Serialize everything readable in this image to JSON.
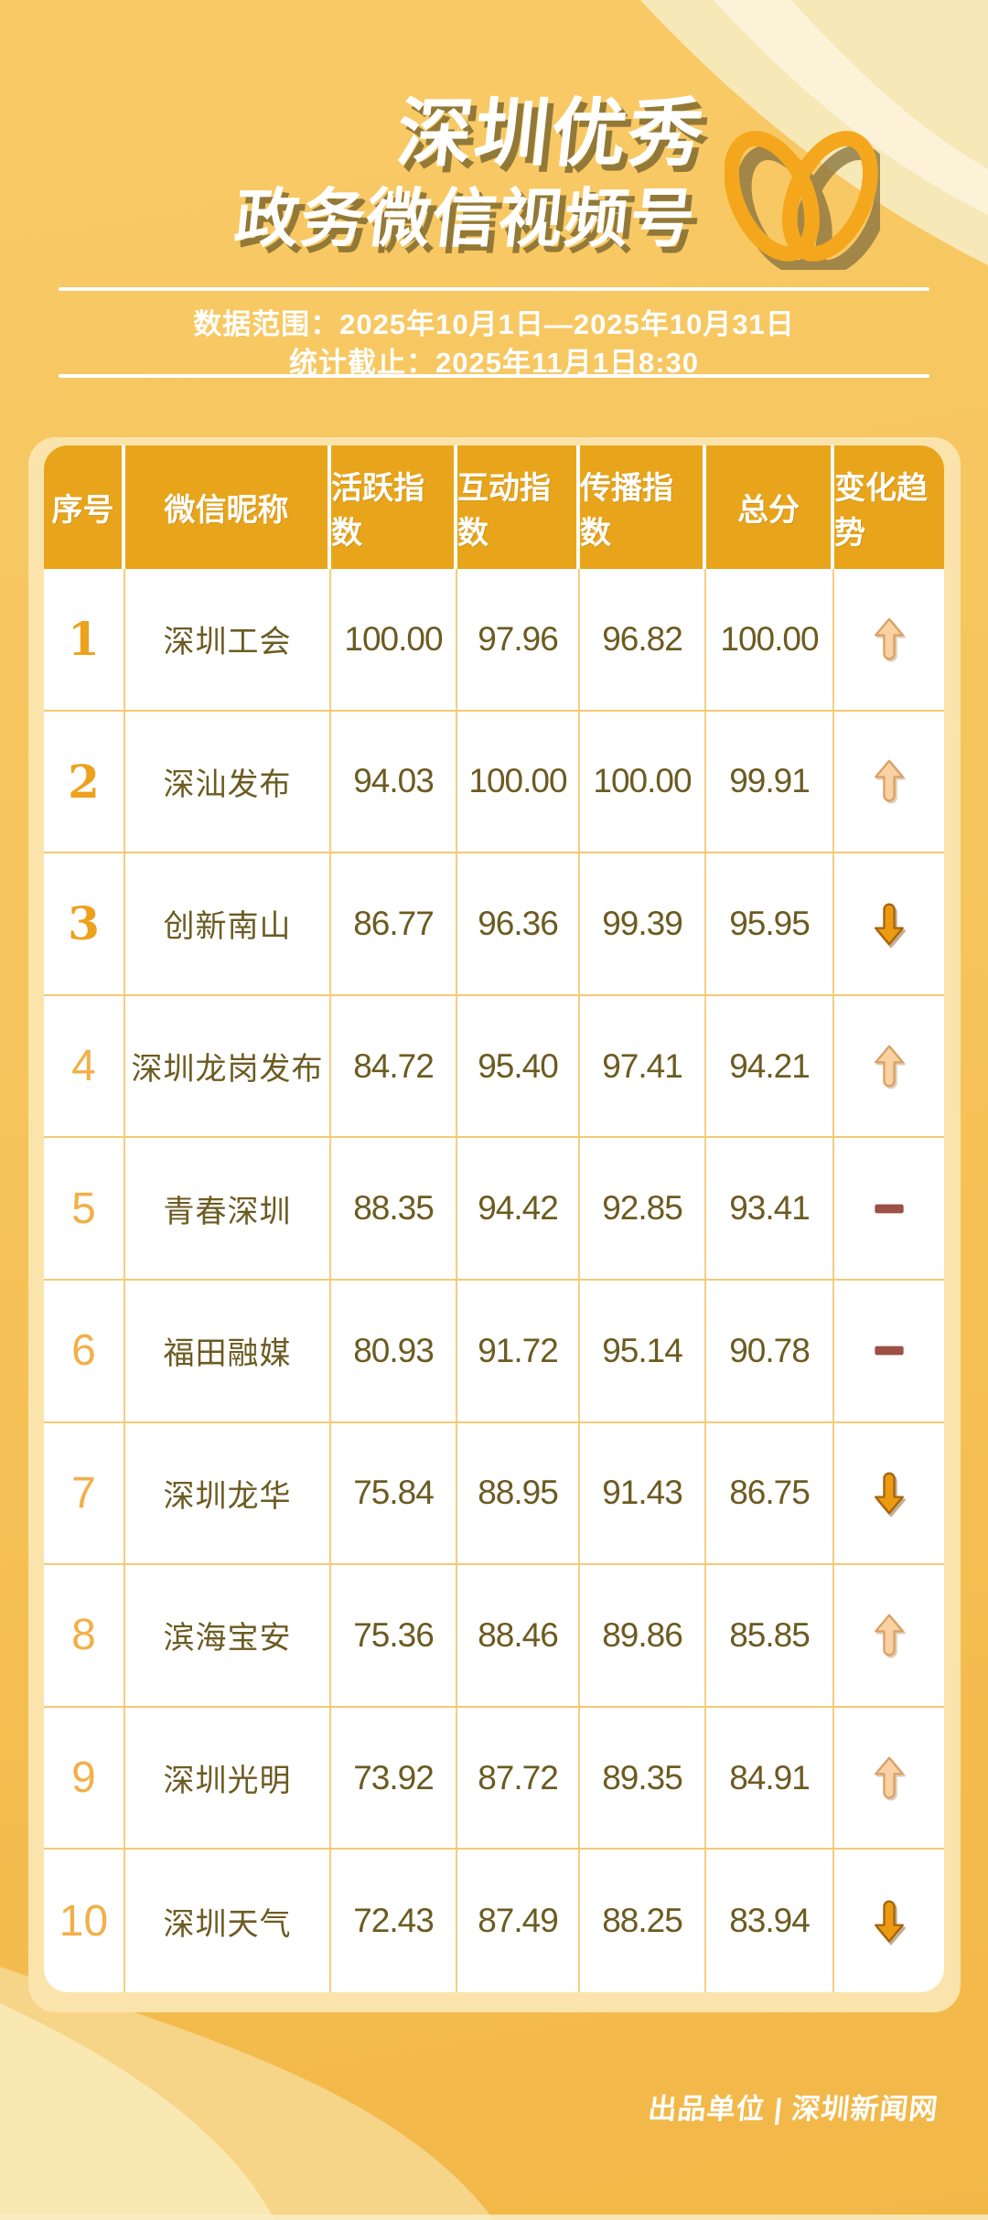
{
  "title": {
    "line1": "深圳优秀",
    "line2": "政务微信视频号"
  },
  "meta": {
    "data_range": "数据范围：2025年10月1日—2025年10月31日",
    "cutoff": "统计截止：2025年11月1日8:30"
  },
  "table": {
    "columns": [
      "序号",
      "微信昵称",
      "活跃指数",
      "互动指数",
      "传播指数",
      "总分",
      "变化趋势"
    ],
    "rows": [
      {
        "rank": "1",
        "name": "深圳工会",
        "activity": "100.00",
        "interaction": "97.96",
        "spread": "96.82",
        "total": "100.00",
        "trend": "up"
      },
      {
        "rank": "2",
        "name": "深汕发布",
        "activity": "94.03",
        "interaction": "100.00",
        "spread": "100.00",
        "total": "99.91",
        "trend": "up"
      },
      {
        "rank": "3",
        "name": "创新南山",
        "activity": "86.77",
        "interaction": "96.36",
        "spread": "99.39",
        "total": "95.95",
        "trend": "down"
      },
      {
        "rank": "4",
        "name": "深圳龙岗发布",
        "activity": "84.72",
        "interaction": "95.40",
        "spread": "97.41",
        "total": "94.21",
        "trend": "up"
      },
      {
        "rank": "5",
        "name": "青春深圳",
        "activity": "88.35",
        "interaction": "94.42",
        "spread": "92.85",
        "total": "93.41",
        "trend": "flat"
      },
      {
        "rank": "6",
        "name": "福田融媒",
        "activity": "80.93",
        "interaction": "91.72",
        "spread": "95.14",
        "total": "90.78",
        "trend": "flat"
      },
      {
        "rank": "7",
        "name": "深圳龙华",
        "activity": "75.84",
        "interaction": "88.95",
        "spread": "91.43",
        "total": "86.75",
        "trend": "down"
      },
      {
        "rank": "8",
        "name": "滨海宝安",
        "activity": "75.36",
        "interaction": "88.46",
        "spread": "89.86",
        "total": "85.85",
        "trend": "up"
      },
      {
        "rank": "9",
        "name": "深圳光明",
        "activity": "73.92",
        "interaction": "87.72",
        "spread": "89.35",
        "total": "84.91",
        "trend": "up"
      },
      {
        "rank": "10",
        "name": "深圳天气",
        "activity": "72.43",
        "interaction": "87.49",
        "spread": "88.25",
        "total": "83.94",
        "trend": "down"
      }
    ]
  },
  "footer": {
    "credit": "出品单位 | 深圳新闻网"
  },
  "icons": {
    "logo": "wechat-channels-logo",
    "trend_up": "trend-up-arrow",
    "trend_down": "trend-down-arrow",
    "trend_flat": "trend-flat-dash"
  },
  "colors": {
    "background_top": "#F8CA67",
    "background_bottom": "#F2B747",
    "card_cream": "#FBE4AB",
    "header_orange": "#E8A51B",
    "row_text": "#6C5B21",
    "rank_gold_bold": "#EDA21D",
    "rank_gold_light": "#F2B049",
    "grid_line": "#F6CE7D",
    "trend_up_fill": "#FAD1A3",
    "trend_down_fill": "#EC9B10",
    "trend_flat_fill": "#9C5046",
    "logo_gold": "#F4A71C",
    "title_shadow": "#8A7234"
  },
  "chart_data": {
    "type": "table",
    "title": "深圳优秀政务微信视频号",
    "subtitle": "数据范围：2025年10月1日—2025年10月31日 / 统计截止：2025年11月1日8:30",
    "columns": [
      "序号",
      "微信昵称",
      "活跃指数",
      "互动指数",
      "传播指数",
      "总分",
      "变化趋势"
    ],
    "rows": [
      [
        "1",
        "深圳工会",
        100.0,
        97.96,
        96.82,
        100.0,
        "up"
      ],
      [
        "2",
        "深汕发布",
        94.03,
        100.0,
        100.0,
        99.91,
        "up"
      ],
      [
        "3",
        "创新南山",
        86.77,
        96.36,
        99.39,
        95.95,
        "down"
      ],
      [
        "4",
        "深圳龙岗发布",
        84.72,
        95.4,
        97.41,
        94.21,
        "up"
      ],
      [
        "5",
        "青春深圳",
        88.35,
        94.42,
        92.85,
        93.41,
        "flat"
      ],
      [
        "6",
        "福田融媒",
        80.93,
        91.72,
        95.14,
        90.78,
        "flat"
      ],
      [
        "7",
        "深圳龙华",
        75.84,
        88.95,
        91.43,
        86.75,
        "down"
      ],
      [
        "8",
        "滨海宝安",
        75.36,
        88.46,
        89.86,
        85.85,
        "up"
      ],
      [
        "9",
        "深圳光明",
        73.92,
        87.72,
        89.35,
        84.91,
        "up"
      ],
      [
        "10",
        "深圳天气",
        72.43,
        87.49,
        88.25,
        83.94,
        "down"
      ]
    ]
  }
}
